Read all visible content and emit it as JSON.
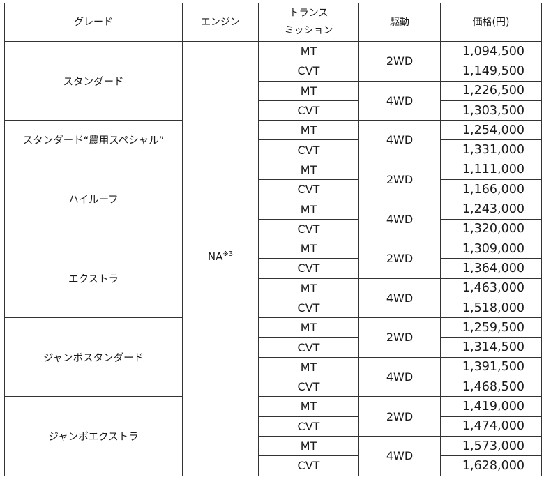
{
  "headers": {
    "grade": "グレード",
    "engine": "エンジン",
    "transmission_line1": "トランス",
    "transmission_line2": "ミッション",
    "drive": "駆動",
    "price": "価格(円)"
  },
  "engine_value": "NA",
  "engine_note": "※3",
  "grades": [
    {
      "name": "スタンダード",
      "drives": [
        {
          "drive": "2WD",
          "options": [
            {
              "trans": "MT",
              "price": "1,094,500"
            },
            {
              "trans": "CVT",
              "price": "1,149,500"
            }
          ]
        },
        {
          "drive": "4WD",
          "options": [
            {
              "trans": "MT",
              "price": "1,226,500"
            },
            {
              "trans": "CVT",
              "price": "1,303,500"
            }
          ]
        }
      ]
    },
    {
      "name": "スタンダード“農用スペシャル”",
      "drives": [
        {
          "drive": "4WD",
          "options": [
            {
              "trans": "MT",
              "price": "1,254,000"
            },
            {
              "trans": "CVT",
              "price": "1,331,000"
            }
          ]
        }
      ]
    },
    {
      "name": "ハイルーフ",
      "drives": [
        {
          "drive": "2WD",
          "options": [
            {
              "trans": "MT",
              "price": "1,111,000"
            },
            {
              "trans": "CVT",
              "price": "1,166,000"
            }
          ]
        },
        {
          "drive": "4WD",
          "options": [
            {
              "trans": "MT",
              "price": "1,243,000"
            },
            {
              "trans": "CVT",
              "price": "1,320,000"
            }
          ]
        }
      ]
    },
    {
      "name": "エクストラ",
      "drives": [
        {
          "drive": "2WD",
          "options": [
            {
              "trans": "MT",
              "price": "1,309,000"
            },
            {
              "trans": "CVT",
              "price": "1,364,000"
            }
          ]
        },
        {
          "drive": "4WD",
          "options": [
            {
              "trans": "MT",
              "price": "1,463,000"
            },
            {
              "trans": "CVT",
              "price": "1,518,000"
            }
          ]
        }
      ]
    },
    {
      "name": "ジャンボスタンダード",
      "drives": [
        {
          "drive": "2WD",
          "options": [
            {
              "trans": "MT",
              "price": "1,259,500"
            },
            {
              "trans": "CVT",
              "price": "1,314,500"
            }
          ]
        },
        {
          "drive": "4WD",
          "options": [
            {
              "trans": "MT",
              "price": "1,391,500"
            },
            {
              "trans": "CVT",
              "price": "1,468,500"
            }
          ]
        }
      ]
    },
    {
      "name": "ジャンボエクストラ",
      "drives": [
        {
          "drive": "2WD",
          "options": [
            {
              "trans": "MT",
              "price": "1,419,000"
            },
            {
              "trans": "CVT",
              "price": "1,474,000"
            }
          ]
        },
        {
          "drive": "4WD",
          "options": [
            {
              "trans": "MT",
              "price": "1,573,000"
            },
            {
              "trans": "CVT",
              "price": "1,628,000"
            }
          ]
        }
      ]
    }
  ]
}
